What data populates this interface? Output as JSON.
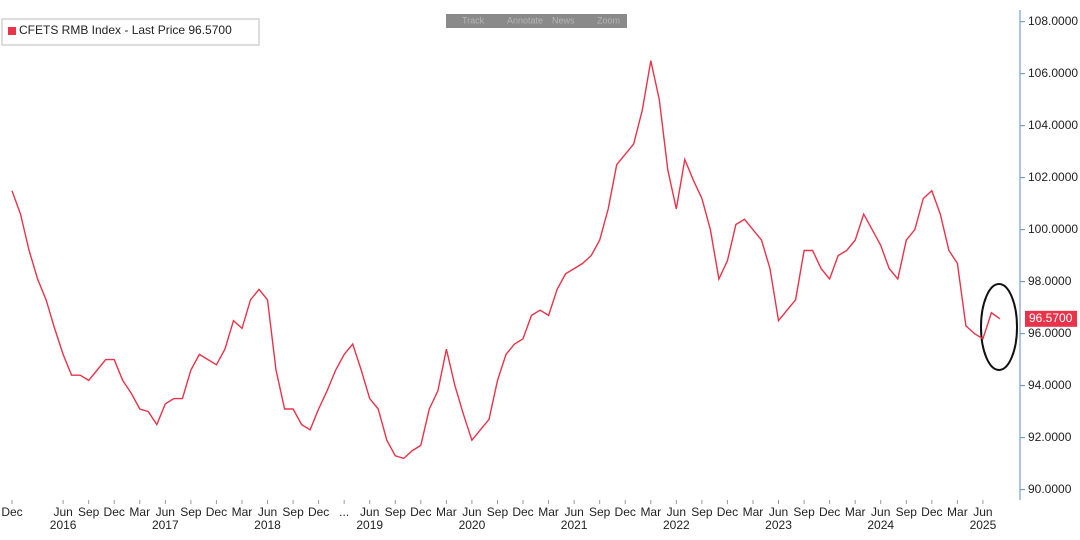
{
  "toolbar": [
    "Track",
    "Annotate",
    "News",
    "Zoom"
  ],
  "chart_data": {
    "type": "line",
    "x": [
      "2015-12",
      "2016-01",
      "2016-02",
      "2016-03",
      "2016-04",
      "2016-05",
      "2016-06",
      "2016-07",
      "2016-08",
      "2016-09",
      "2016-10",
      "2016-11",
      "2016-12",
      "2017-01",
      "2017-02",
      "2017-03",
      "2017-04",
      "2017-05",
      "2017-06",
      "2017-07",
      "2017-08",
      "2017-09",
      "2017-10",
      "2017-11",
      "2017-12",
      "2018-01",
      "2018-02",
      "2018-03",
      "2018-04",
      "2018-05",
      "2018-06",
      "2018-07",
      "2018-08",
      "2018-09",
      "2018-10",
      "2018-11",
      "2018-12",
      "2019-01",
      "2019-02",
      "2019-03",
      "2019-04",
      "2019-05",
      "2019-06",
      "2019-07",
      "2019-08",
      "2019-09",
      "2019-10",
      "2019-11",
      "2019-12",
      "2020-01",
      "2020-02",
      "2020-03",
      "2020-04",
      "2020-05",
      "2020-06",
      "2020-07",
      "2020-08",
      "2020-09",
      "2020-10",
      "2020-11",
      "2020-12",
      "2021-01",
      "2021-02",
      "2021-03",
      "2021-04",
      "2021-05",
      "2021-06",
      "2021-07",
      "2021-08",
      "2021-09",
      "2021-10",
      "2021-11",
      "2021-12",
      "2022-01",
      "2022-02",
      "2022-03",
      "2022-04",
      "2022-05",
      "2022-06",
      "2022-07",
      "2022-08",
      "2022-09",
      "2022-10",
      "2022-11",
      "2022-12",
      "2023-01",
      "2023-02",
      "2023-03",
      "2023-04",
      "2023-05",
      "2023-06",
      "2023-07",
      "2023-08",
      "2023-09",
      "2023-10",
      "2023-11",
      "2023-12",
      "2024-01",
      "2024-02",
      "2024-03",
      "2024-04",
      "2024-05",
      "2024-06",
      "2024-07",
      "2024-08",
      "2024-09",
      "2024-10",
      "2024-11",
      "2024-12",
      "2025-01",
      "2025-02",
      "2025-03",
      "2025-04",
      "2025-05",
      "2025-06",
      "2025-07",
      "2025-08"
    ],
    "series": [
      {
        "name": "CFETS RMB Index - Last Price 96.5700",
        "color": "#e8334a",
        "values": [
          101.5,
          100.6,
          99.2,
          98.1,
          97.3,
          96.2,
          95.2,
          94.4,
          94.4,
          94.2,
          94.6,
          95.0,
          95.0,
          94.2,
          93.7,
          93.1,
          93.0,
          92.5,
          93.3,
          93.5,
          93.5,
          94.6,
          95.2,
          95.0,
          94.8,
          95.4,
          96.5,
          96.2,
          97.3,
          97.7,
          97.3,
          94.6,
          93.1,
          93.1,
          92.5,
          92.3,
          93.1,
          93.8,
          94.6,
          95.2,
          95.6,
          94.6,
          93.5,
          93.1,
          91.9,
          91.3,
          91.2,
          91.5,
          91.7,
          93.1,
          93.8,
          95.4,
          94.0,
          92.9,
          91.9,
          92.3,
          92.7,
          94.2,
          95.2,
          95.6,
          95.8,
          96.7,
          96.9,
          96.7,
          97.7,
          98.3,
          98.5,
          98.7,
          99.0,
          99.6,
          100.8,
          102.5,
          102.9,
          103.3,
          104.6,
          106.5,
          105.0,
          102.3,
          100.8,
          102.7,
          101.9,
          101.2,
          100.0,
          98.1,
          98.8,
          100.2,
          100.4,
          100.0,
          99.6,
          98.5,
          96.5,
          96.9,
          97.3,
          99.2,
          99.2,
          98.5,
          98.1,
          99.0,
          99.2,
          99.6,
          100.6,
          100.0,
          99.4,
          98.5,
          98.1,
          99.6,
          100.0,
          101.2,
          101.5,
          100.6,
          99.2,
          98.7,
          96.3,
          96.0,
          95.8,
          96.8,
          96.57
        ]
      }
    ],
    "last_price": 96.57,
    "last_price_label": "96.5700",
    "xlim": [
      "2015-11",
      "2025-10"
    ],
    "xticks": [
      {
        "value": "2015-12",
        "label": "Dec"
      },
      {
        "value": "2016-06",
        "label": "Jun"
      },
      {
        "value": "2016-09",
        "label": "Sep"
      },
      {
        "value": "2016-12",
        "label": "Dec"
      },
      {
        "value": "2017-03",
        "label": "Mar"
      },
      {
        "value": "2017-06",
        "label": "Jun"
      },
      {
        "value": "2017-09",
        "label": "Sep"
      },
      {
        "value": "2017-12",
        "label": "Dec"
      },
      {
        "value": "2018-03",
        "label": "Mar"
      },
      {
        "value": "2018-06",
        "label": "Jun"
      },
      {
        "value": "2018-09",
        "label": "Sep"
      },
      {
        "value": "2018-12",
        "label": "Dec"
      },
      {
        "value": "2019-03",
        "label": "..."
      },
      {
        "value": "2019-06",
        "label": "Jun"
      },
      {
        "value": "2019-09",
        "label": "Sep"
      },
      {
        "value": "2019-12",
        "label": "Dec"
      },
      {
        "value": "2020-03",
        "label": "Mar"
      },
      {
        "value": "2020-06",
        "label": "Jun"
      },
      {
        "value": "2020-09",
        "label": "Sep"
      },
      {
        "value": "2020-12",
        "label": "Dec"
      },
      {
        "value": "2021-03",
        "label": "Mar"
      },
      {
        "value": "2021-06",
        "label": "Jun"
      },
      {
        "value": "2021-09",
        "label": "Sep"
      },
      {
        "value": "2021-12",
        "label": "Dec"
      },
      {
        "value": "2022-03",
        "label": "Mar"
      },
      {
        "value": "2022-06",
        "label": "Jun"
      },
      {
        "value": "2022-09",
        "label": "Sep"
      },
      {
        "value": "2022-12",
        "label": "Dec"
      },
      {
        "value": "2023-03",
        "label": "Mar"
      },
      {
        "value": "2023-06",
        "label": "Jun"
      },
      {
        "value": "2023-09",
        "label": "Sep"
      },
      {
        "value": "2023-12",
        "label": "Dec"
      },
      {
        "value": "2024-03",
        "label": "Mar"
      },
      {
        "value": "2024-06",
        "label": "Jun"
      },
      {
        "value": "2024-09",
        "label": "Sep"
      },
      {
        "value": "2024-12",
        "label": "Dec"
      },
      {
        "value": "2025-03",
        "label": "Mar"
      },
      {
        "value": "2025-06",
        "label": "Jun"
      }
    ],
    "year_ticks": [
      {
        "value": "2016-06",
        "label": "2016"
      },
      {
        "value": "2017-06",
        "label": "2017"
      },
      {
        "value": "2018-06",
        "label": "2018"
      },
      {
        "value": "2019-06",
        "label": "2019"
      },
      {
        "value": "2020-06",
        "label": "2020"
      },
      {
        "value": "2021-06",
        "label": "2021"
      },
      {
        "value": "2022-06",
        "label": "2022"
      },
      {
        "value": "2023-06",
        "label": "2023"
      },
      {
        "value": "2024-06",
        "label": "2024"
      },
      {
        "value": "2025-06",
        "label": "2025"
      }
    ],
    "ylim": [
      89.6,
      108.45
    ],
    "yticks": [
      {
        "value": 90,
        "label": "90.0000"
      },
      {
        "value": 92,
        "label": "92.0000"
      },
      {
        "value": 94,
        "label": "94.0000"
      },
      {
        "value": 96,
        "label": "96.0000"
      },
      {
        "value": 98,
        "label": "98.0000"
      },
      {
        "value": 100,
        "label": "100.0000"
      },
      {
        "value": 102,
        "label": "102.0000"
      },
      {
        "value": 104,
        "label": "104.0000"
      },
      {
        "value": 106,
        "label": "106.0000"
      },
      {
        "value": 108,
        "label": "108.0000"
      }
    ],
    "grid": false
  }
}
